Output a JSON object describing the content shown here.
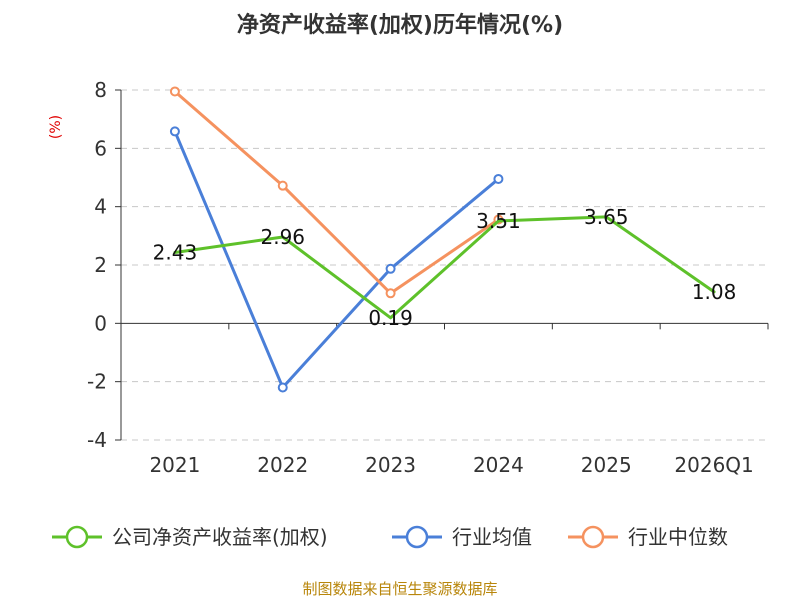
{
  "chart_data": {
    "type": "line",
    "title": "净资产收益率(加权)历年情况(%)",
    "ylabel": "(%)",
    "categories": [
      "2021",
      "2022",
      "2023",
      "2024",
      "2025",
      "2026Q1"
    ],
    "ylim": [
      -4,
      8
    ],
    "yticks": [
      -4,
      -2,
      0,
      2,
      4,
      6,
      8
    ],
    "ytick_labels": [
      "-4",
      "-2",
      "0",
      "2",
      "4",
      "6",
      "8"
    ],
    "grid": true,
    "legend_position": "bottom",
    "series": [
      {
        "name": "公司净资产收益率(加权)",
        "color": "#5ec12a",
        "values": [
          2.43,
          2.96,
          0.19,
          3.51,
          3.65,
          1.08
        ],
        "labels": [
          "2.43",
          "2.96",
          "0.19",
          "3.51",
          "3.65",
          "1.08"
        ],
        "markers": false
      },
      {
        "name": "行业均值",
        "color": "#4a7fd8",
        "values": [
          6.58,
          -2.2,
          1.87,
          4.95,
          null,
          null
        ],
        "markers": true
      },
      {
        "name": "行业中位数",
        "color": "#f5925f",
        "values": [
          7.95,
          4.72,
          1.03,
          3.56,
          null,
          null
        ],
        "markers": true
      }
    ]
  },
  "source": "制图数据来自恒生聚源数据库"
}
